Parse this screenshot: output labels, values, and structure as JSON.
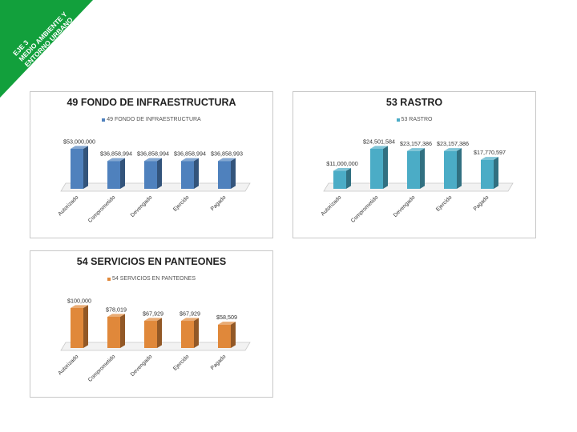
{
  "banner": {
    "line1": "EJE 3",
    "line2": "MEDIO AMBIENTE Y",
    "line3": "ENTORNO URBANO",
    "color": "#12a03c"
  },
  "charts": [
    {
      "title": "49 FONDO DE INFRAESTRUCTURA",
      "chart_data": {
        "type": "bar",
        "title": "49 FONDO DE INFRAESTRUCTURA",
        "categories": [
          "Autorizado",
          "Comprometido",
          "Devengado",
          "Ejercido",
          "Pagado"
        ],
        "series": [
          {
            "name": "49 FONDO DE INFRAESTRUCTURA",
            "values": [
              53000000,
              36858994,
              36858994,
              36858994,
              36858993
            ],
            "labels": [
              "$53,000,000",
              "$36,858,994",
              "$36,858,994",
              "$36,858,994",
              "$36,858,993"
            ]
          }
        ],
        "ylim": [
          0,
          53000000
        ],
        "legend": "top",
        "grid": false,
        "color": "#4f81bd"
      }
    },
    {
      "title": "53 RASTRO",
      "chart_data": {
        "type": "bar",
        "title": "53 RASTRO",
        "categories": [
          "Autorizado",
          "Comprometido",
          "Devengado",
          "Ejercido",
          "Pagado"
        ],
        "series": [
          {
            "name": "53 RASTRO",
            "values": [
              11000000,
              24501584,
              23157386,
              23157386,
              17770597
            ],
            "labels": [
              "$11,000,000",
              "$24,501,584",
              "$23,157,386",
              "$23,157,386",
              "$17,770,597"
            ]
          }
        ],
        "ylim": [
          0,
          24501584
        ],
        "legend": "top",
        "grid": false,
        "color": "#4bacc6"
      }
    },
    {
      "title": "54 SERVICIOS EN PANTEONES",
      "chart_data": {
        "type": "bar",
        "title": "54 SERVICIOS EN PANTEONES",
        "categories": [
          "Autorizado",
          "Comprometido",
          "Devengado",
          "Ejercido",
          "Pagado"
        ],
        "series": [
          {
            "name": "54 SERVICIOS EN PANTEONES",
            "values": [
              100000,
              78019,
              67929,
              67929,
              58509
            ],
            "labels": [
              "$100,000",
              "$78,019",
              "$67,929",
              "$67,929",
              "$58,509"
            ]
          }
        ],
        "ylim": [
          0,
          100000
        ],
        "legend": "top",
        "grid": false,
        "color": "#e0883a"
      }
    }
  ]
}
